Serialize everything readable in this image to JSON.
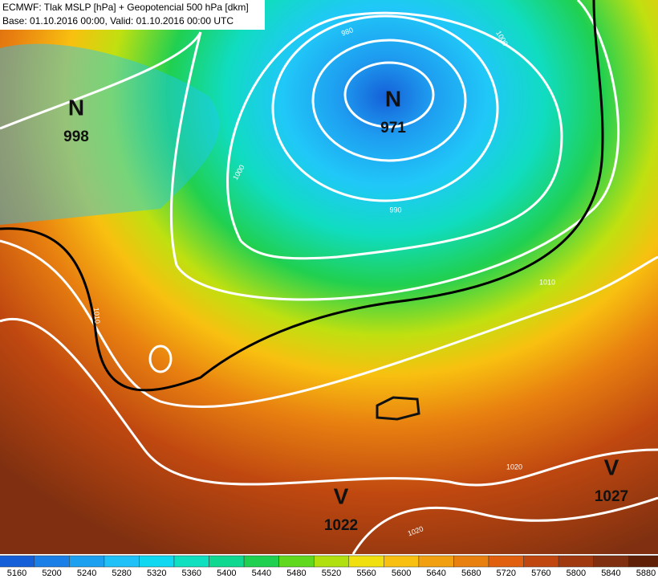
{
  "header": {
    "title": "ECMWF: Tlak MSLP [hPa] + Geopotencial 500 hPa [dkm]",
    "subtitle": "Base: 01.10.2016 00:00, Valid: 01.10.2016 00:00 UTC"
  },
  "pressure_centers": [
    {
      "type": "N",
      "value": 998
    },
    {
      "type": "N",
      "value": 971
    },
    {
      "type": "V",
      "value": 1022
    },
    {
      "type": "V",
      "value": 1027
    }
  ],
  "isobar_labels": [
    980,
    990,
    1000,
    1000,
    1010,
    1010,
    1020,
    1020
  ],
  "colorbar": {
    "ticks": [
      5160,
      5200,
      5240,
      5280,
      5320,
      5360,
      5400,
      5440,
      5480,
      5520,
      5560,
      5600,
      5640,
      5680,
      5720,
      5760,
      5800,
      5840,
      5880
    ],
    "colors": [
      "#1560d8",
      "#1a80e8",
      "#1ea0f0",
      "#20c0f8",
      "#10d8f0",
      "#10e0c0",
      "#10d890",
      "#20d050",
      "#60d820",
      "#b0e010",
      "#f0e010",
      "#f8c010",
      "#f0a010",
      "#e88010",
      "#e06010",
      "#c04810",
      "#a03810",
      "#803010",
      "#602008"
    ]
  }
}
